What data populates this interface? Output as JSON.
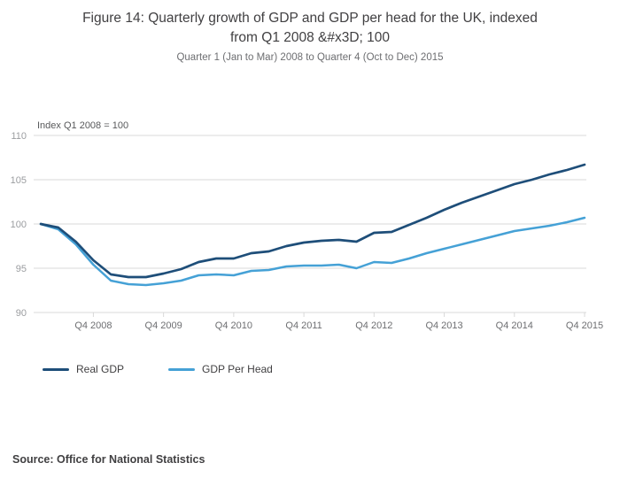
{
  "header": {
    "title_line1": "Figure 14: Quarterly growth of GDP and GDP per head for the UK, indexed",
    "title_line2": "from Q1 2008 &#x3D; 100",
    "subtitle": "Quarter 1 (Jan to Mar) 2008 to Quarter 4 (Oct to Dec) 2015"
  },
  "chart_data": {
    "type": "line",
    "annotation": "Index Q1 2008 = 100",
    "ylim": [
      90,
      110
    ],
    "y_ticks": [
      90,
      95,
      100,
      105,
      110
    ],
    "x_tick_labels": [
      "Q4 2008",
      "Q4 2009",
      "Q4 2010",
      "Q4 2011",
      "Q4 2012",
      "Q4 2013",
      "Q4 2014",
      "Q4 2015"
    ],
    "x_tick_indices": [
      3,
      7,
      11,
      15,
      19,
      23,
      27,
      31
    ],
    "grid": true,
    "legend_position": "bottom-left",
    "categories": [
      "Q1 2008",
      "Q2 2008",
      "Q3 2008",
      "Q4 2008",
      "Q1 2009",
      "Q2 2009",
      "Q3 2009",
      "Q4 2009",
      "Q1 2010",
      "Q2 2010",
      "Q3 2010",
      "Q4 2010",
      "Q1 2011",
      "Q2 2011",
      "Q3 2011",
      "Q4 2011",
      "Q1 2012",
      "Q2 2012",
      "Q3 2012",
      "Q4 2012",
      "Q1 2013",
      "Q2 2013",
      "Q3 2013",
      "Q4 2013",
      "Q1 2014",
      "Q2 2014",
      "Q3 2014",
      "Q4 2014",
      "Q1 2015",
      "Q2 2015",
      "Q3 2015",
      "Q4 2015"
    ],
    "series": [
      {
        "name": "Real GDP",
        "color": "#1e4e79",
        "values": [
          100.0,
          99.6,
          98.0,
          95.9,
          94.3,
          94.0,
          94.0,
          94.4,
          94.9,
          95.7,
          96.1,
          96.1,
          96.7,
          96.9,
          97.5,
          97.9,
          98.1,
          98.2,
          98.0,
          99.0,
          99.1,
          99.9,
          100.7,
          101.6,
          102.4,
          103.1,
          103.8,
          104.5,
          105.0,
          105.6,
          106.1,
          106.7
        ]
      },
      {
        "name": "GDP Per Head",
        "color": "#45a1d6",
        "values": [
          100.0,
          99.4,
          97.7,
          95.4,
          93.6,
          93.2,
          93.1,
          93.3,
          93.6,
          94.2,
          94.3,
          94.2,
          94.7,
          94.8,
          95.2,
          95.3,
          95.3,
          95.4,
          95.0,
          95.7,
          95.6,
          96.1,
          96.7,
          97.2,
          97.7,
          98.2,
          98.7,
          99.2,
          99.5,
          99.8,
          100.2,
          100.7
        ]
      }
    ]
  },
  "footer": {
    "source": "Source: Office for National Statistics"
  }
}
